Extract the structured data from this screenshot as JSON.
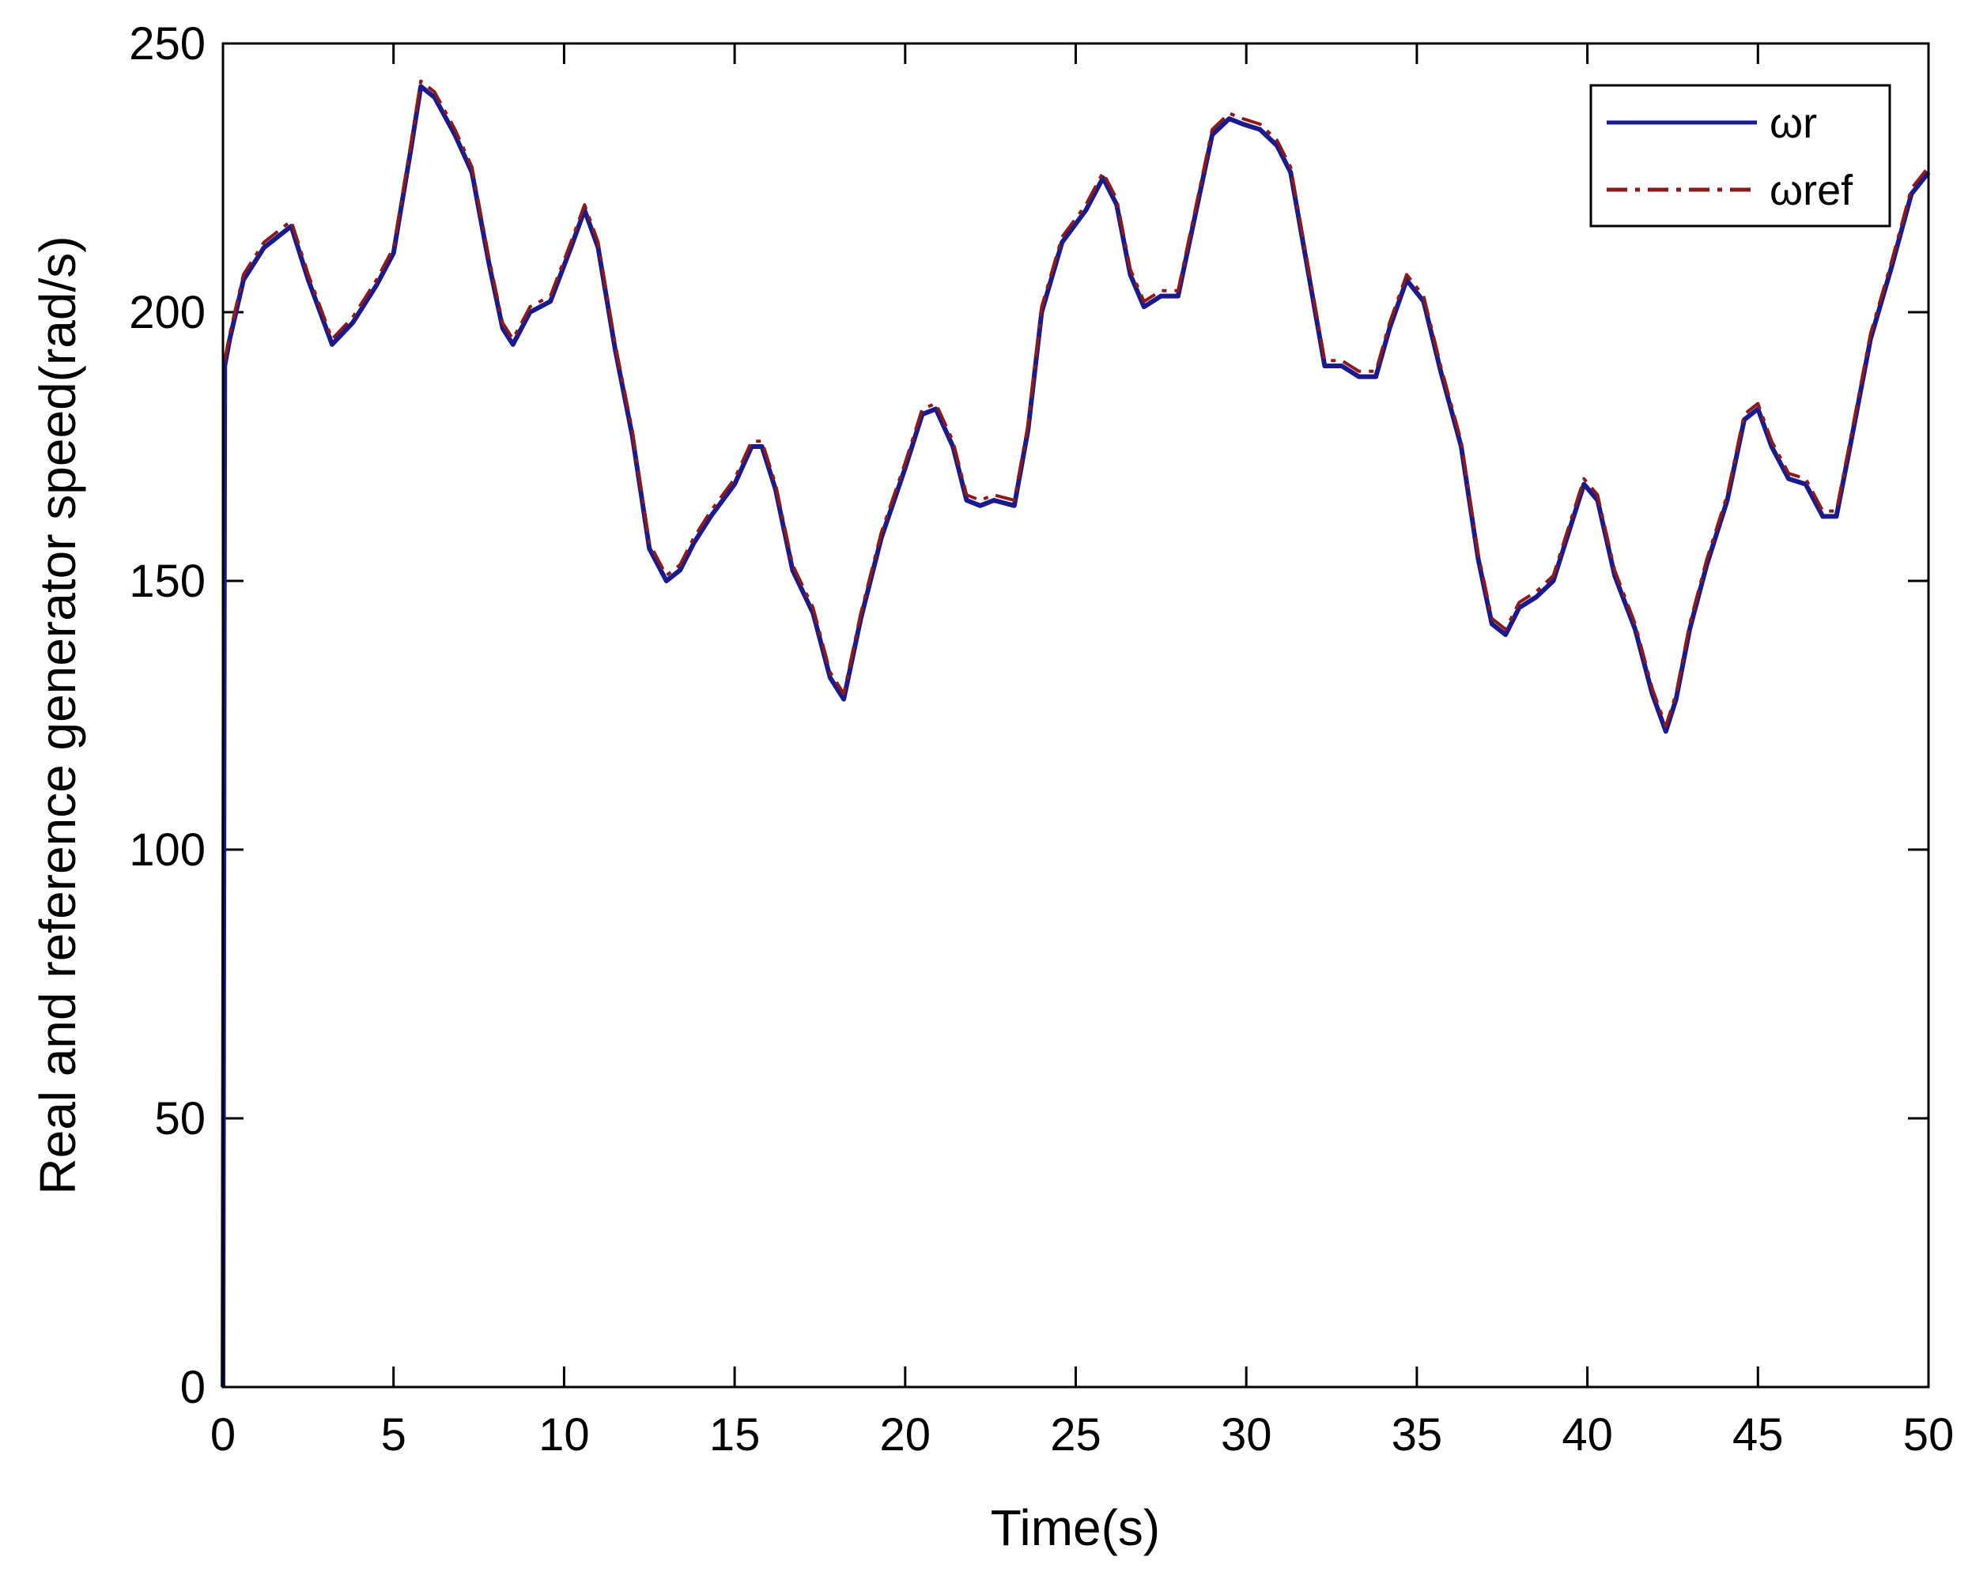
{
  "chart_data": {
    "type": "line",
    "title": "",
    "xlabel": "Time(s)",
    "ylabel": "Real and reference generator speed(rad/s)",
    "xlim": [
      0,
      50
    ],
    "ylim": [
      0,
      250
    ],
    "xticks": [
      0,
      5,
      10,
      15,
      20,
      25,
      30,
      35,
      40,
      45,
      50
    ],
    "yticks": [
      0,
      50,
      100,
      150,
      200,
      250
    ],
    "grid": false,
    "legend_position": "top-right",
    "series": [
      {
        "name": "ωr",
        "color": "#1a1a8c",
        "style": "solid",
        "x": [
          0,
          0.05,
          0.2,
          0.6,
          1.2,
          2.0,
          2.5,
          3.2,
          3.8,
          4.5,
          5.0,
          5.5,
          5.8,
          6.2,
          6.8,
          7.3,
          7.8,
          8.2,
          8.5,
          9.0,
          9.6,
          10.2,
          10.6,
          11.0,
          11.5,
          12.0,
          12.5,
          13.0,
          13.4,
          13.8,
          14.3,
          15.0,
          15.5,
          15.8,
          16.2,
          16.7,
          17.3,
          17.8,
          18.2,
          18.7,
          19.3,
          20.0,
          20.5,
          20.9,
          21.4,
          21.8,
          22.2,
          22.6,
          23.2,
          23.6,
          24.0,
          24.6,
          25.3,
          25.8,
          26.2,
          26.6,
          27.0,
          27.5,
          28.0,
          28.5,
          29.0,
          29.5,
          29.9,
          30.4,
          30.9,
          31.3,
          31.8,
          32.3,
          32.8,
          33.3,
          33.8,
          34.2,
          34.7,
          35.2,
          35.7,
          36.3,
          36.8,
          37.2,
          37.6,
          38.0,
          38.5,
          39.0,
          39.5,
          39.9,
          40.3,
          40.8,
          41.4,
          41.9,
          42.3,
          42.6,
          43.0,
          43.5,
          44.1,
          44.6,
          45.0,
          45.4,
          45.9,
          46.4,
          46.9,
          47.3,
          47.7,
          48.3,
          48.9,
          49.5,
          50.0
        ],
        "y": [
          0,
          190,
          195,
          206,
          212,
          216,
          206,
          194,
          198,
          205,
          211,
          230,
          242,
          240,
          233,
          226,
          209,
          197,
          194,
          200,
          202,
          212,
          219,
          212,
          193,
          177,
          156,
          150,
          152,
          157,
          162,
          168,
          175,
          175,
          167,
          152,
          144,
          132,
          128,
          143,
          158,
          171,
          181,
          182,
          175,
          165,
          164,
          165,
          164,
          178,
          200,
          213,
          219,
          225,
          220,
          207,
          201,
          203,
          203,
          218,
          233,
          236,
          235,
          234,
          231,
          226,
          208,
          190,
          190,
          188,
          188,
          197,
          206,
          202,
          189,
          175,
          154,
          142,
          140,
          145,
          147,
          150,
          160,
          168,
          165,
          151,
          141,
          129,
          122,
          128,
          141,
          153,
          165,
          180,
          182,
          175,
          169,
          168,
          162,
          162,
          175,
          195,
          208,
          222,
          226
        ]
      },
      {
        "name": "ωref",
        "color": "#8c1a1a",
        "style": "dashdot",
        "x": [
          0.05,
          0.2,
          0.6,
          1.2,
          2.0,
          2.5,
          3.2,
          3.8,
          4.5,
          5.0,
          5.5,
          5.8,
          6.2,
          6.8,
          7.3,
          7.8,
          8.2,
          8.5,
          9.0,
          9.6,
          10.2,
          10.6,
          11.0,
          11.5,
          12.0,
          12.5,
          13.0,
          13.4,
          13.8,
          14.3,
          15.0,
          15.5,
          15.8,
          16.2,
          16.7,
          17.3,
          17.8,
          18.2,
          18.7,
          19.3,
          20.0,
          20.5,
          20.9,
          21.4,
          21.8,
          22.2,
          22.6,
          23.2,
          23.6,
          24.0,
          24.6,
          25.3,
          25.8,
          26.2,
          26.6,
          27.0,
          27.5,
          28.0,
          28.5,
          29.0,
          29.5,
          29.9,
          30.4,
          30.9,
          31.3,
          31.8,
          32.3,
          32.8,
          33.3,
          33.8,
          34.2,
          34.7,
          35.2,
          35.7,
          36.3,
          36.8,
          37.2,
          37.6,
          38.0,
          38.5,
          39.0,
          39.5,
          39.9,
          40.3,
          40.8,
          41.4,
          41.9,
          42.3,
          42.6,
          43.0,
          43.5,
          44.1,
          44.6,
          45.0,
          45.4,
          45.9,
          46.4,
          46.9,
          47.3,
          47.7,
          48.3,
          48.9,
          49.5,
          50.0
        ],
        "y": [
          191,
          196,
          207,
          213,
          217,
          207,
          195,
          199,
          206,
          212,
          231,
          243,
          241,
          234,
          227,
          210,
          198,
          195,
          201,
          203,
          213,
          220,
          213,
          194,
          178,
          157,
          151,
          153,
          158,
          163,
          169,
          176,
          176,
          168,
          153,
          145,
          133,
          129,
          144,
          159,
          172,
          182,
          183,
          176,
          166,
          165,
          166,
          165,
          179,
          201,
          214,
          220,
          226,
          221,
          208,
          202,
          204,
          204,
          219,
          234,
          237,
          236,
          235,
          232,
          227,
          209,
          191,
          191,
          189,
          189,
          198,
          207,
          203,
          190,
          176,
          155,
          143,
          141,
          146,
          148,
          151,
          161,
          169,
          166,
          152,
          142,
          130,
          123,
          129,
          142,
          154,
          166,
          181,
          183,
          176,
          170,
          169,
          163,
          163,
          176,
          196,
          209,
          223,
          227
        ]
      }
    ]
  }
}
